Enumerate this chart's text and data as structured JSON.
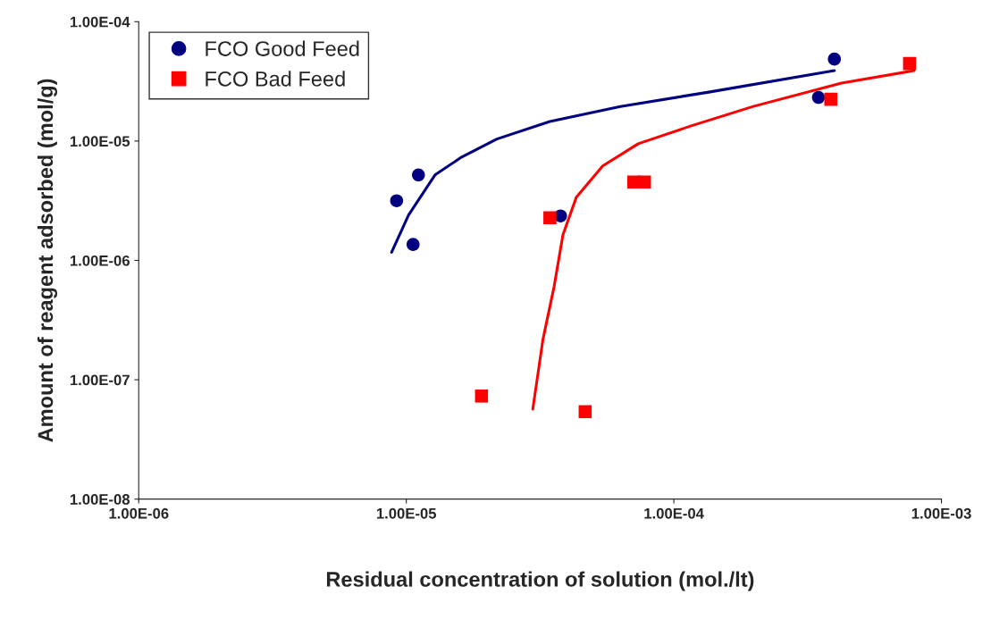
{
  "chart_data": {
    "type": "scatter",
    "xlabel": "Residual concentration of solution (mol./lt)",
    "ylabel": "Amount of reagent adsorbed (mol/g)",
    "log": "xy",
    "grid": false,
    "legend": "top left",
    "xlim": [
      1e-06,
      0.001
    ],
    "ylim": [
      1e-08,
      0.0001
    ],
    "xticks": [
      {
        "value": 1e-06,
        "label": "1.00E-06"
      },
      {
        "value": 1e-05,
        "label": "1.00E-05"
      },
      {
        "value": 0.0001,
        "label": "1.00E-04"
      },
      {
        "value": 0.001,
        "label": "1.00E-03"
      }
    ],
    "yticks": [
      {
        "value": 1e-08,
        "label": "1.00E-08"
      },
      {
        "value": 1e-07,
        "label": "1.00E-07"
      },
      {
        "value": 1e-06,
        "label": "1.00E-06"
      },
      {
        "value": 1e-05,
        "label": "1.00E-05"
      },
      {
        "value": 0.0001,
        "label": "1.00E-04"
      }
    ],
    "series": [
      {
        "name": "FCO Good Feed",
        "marker": "circle",
        "color": "#000080",
        "x": [
          9.2e-06,
          1.11e-05,
          1.06e-05,
          3.77e-05,
          0.000347,
          0.000398
        ],
        "values": [
          3.16e-06,
          5.2e-06,
          1.36e-06,
          2.36e-06,
          2.32e-05,
          4.86e-05
        ]
      },
      {
        "name": "FCO Bad Feed",
        "marker": "square",
        "color": "#ff0000",
        "x": [
          1.91e-05,
          3.44e-05,
          4.66e-05,
          7.08e-05,
          7.76e-05,
          0.000386,
          0.00076
        ],
        "values": [
          7.3e-08,
          2.28e-06,
          5.4e-08,
          4.54e-06,
          4.54e-06,
          2.24e-05,
          4.46e-05
        ]
      },
      {
        "type": "line",
        "marker": "none",
        "line_style": "solid",
        "color": "#000080",
        "x": [
          8.81e-06,
          1.02e-05,
          1.28e-05,
          1.61e-05,
          2.18e-05,
          3.44e-05,
          6.31e-05,
          0.000135,
          0.000398
        ],
        "values": [
          1.17e-06,
          2.4e-06,
          5.2e-06,
          7.34e-06,
          1.04e-05,
          1.46e-05,
          1.95e-05,
          2.57e-05,
          3.89e-05
        ]
      },
      {
        "type": "line",
        "marker": "none",
        "line_style": "solid",
        "color": "#ff0000",
        "x": [
          2.97e-05,
          3.24e-05,
          3.57e-05,
          3.85e-05,
          4.32e-05,
          5.42e-05,
          7.36e-05,
          0.000116,
          0.000198,
          0.000423,
          0.000789
        ],
        "values": [
          5.68e-08,
          2.17e-07,
          6.08e-07,
          1.64e-06,
          3.39e-06,
          6.18e-06,
          9.5e-06,
          1.34e-05,
          1.95e-05,
          3.06e-05,
          3.89e-05
        ]
      }
    ]
  }
}
